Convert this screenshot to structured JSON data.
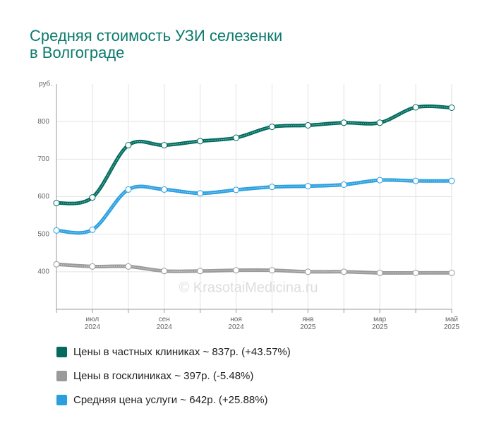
{
  "chart_data": {
    "type": "line",
    "title": "Средняя стоимость УЗИ селезенки в Волгограде",
    "y_label": "руб.",
    "watermark": "© KrasotaiMedicina.ru",
    "categories": [
      null,
      "июл 2024",
      null,
      "сен 2024",
      null,
      "ноя 2024",
      null,
      "янв 2025",
      null,
      "мар 2025",
      null,
      "май 2025"
    ],
    "series": [
      {
        "name": "Цены в частных клиниках ~ 837р. (+43.57%)",
        "color": "#006b5e",
        "values": [
          583,
          598,
          737,
          737,
          748,
          757,
          786,
          790,
          797,
          797,
          838,
          837
        ]
      },
      {
        "name": "Цены в госклиниках ~ 397р. (-5.48%)",
        "color": "#9a9a9a",
        "values": [
          420,
          414,
          414,
          402,
          402,
          404,
          404,
          400,
          400,
          397,
          397,
          397
        ]
      },
      {
        "name": "Средняя цена услуги ~ 642р. (+25.88%)",
        "color": "#2a9fe0",
        "values": [
          510,
          512,
          619,
          619,
          609,
          618,
          626,
          628,
          632,
          644,
          642,
          642
        ]
      }
    ],
    "ylim": [
      300,
      900
    ],
    "yticks": [
      400,
      500,
      600,
      700,
      800
    ],
    "grid": true
  }
}
